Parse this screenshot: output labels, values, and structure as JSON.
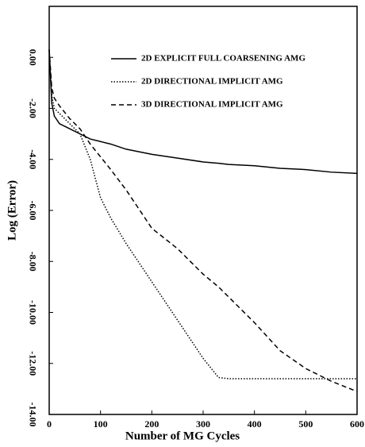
{
  "chart_data": {
    "type": "line",
    "xlabel": "Number of MG Cycles",
    "ylabel": "Log (Error)",
    "x": [
      0,
      5,
      10,
      20,
      40,
      60,
      80,
      100,
      120,
      150,
      200,
      250,
      300,
      330,
      350,
      400,
      450,
      500,
      550,
      600
    ],
    "series": [
      {
        "name": "2D EXPLICIT FULL COARSENING AMG",
        "color": "#000000",
        "style": "solid",
        "values": [
          0.3,
          -1.8,
          -2.3,
          -2.6,
          -2.8,
          -3.0,
          -3.2,
          -3.3,
          -3.4,
          -3.6,
          -3.8,
          -3.95,
          -4.1,
          -4.15,
          -4.2,
          -4.25,
          -4.35,
          -4.4,
          -4.5,
          -4.55
        ]
      },
      {
        "name": "2D DIRECTIONAL IMPLICIT AMG",
        "color": "#000000",
        "style": "dotted",
        "values": [
          0.3,
          -1.5,
          -2.0,
          -2.2,
          -2.6,
          -3.0,
          -4.0,
          -5.5,
          -6.3,
          -7.3,
          -8.8,
          -10.3,
          -11.8,
          -12.55,
          -12.6,
          -12.6,
          -12.6,
          -12.6,
          -12.6,
          -12.6
        ]
      },
      {
        "name": "3D DIRECTIONAL IMPLICIT AMG",
        "color": "#000000",
        "style": "dashed",
        "values": [
          0.3,
          -1.2,
          -1.6,
          -1.9,
          -2.4,
          -2.8,
          -3.4,
          -3.9,
          -4.4,
          -5.2,
          -6.7,
          -7.5,
          -8.5,
          -9.0,
          -9.4,
          -10.4,
          -11.5,
          -12.2,
          -12.7,
          -13.1
        ]
      }
    ],
    "xlim": [
      0,
      600
    ],
    "xticks": [
      0,
      100,
      200,
      300,
      400,
      500,
      600
    ],
    "ylim": [
      -14,
      2
    ],
    "yticks": [
      {
        "value": 0,
        "label": "0.00"
      },
      {
        "value": -2,
        "label": "-2.00"
      },
      {
        "value": -4,
        "label": "-4.00"
      },
      {
        "value": -6,
        "label": "-6.00"
      },
      {
        "value": -8,
        "label": "-8.00"
      },
      {
        "value": -10,
        "label": "-10.00"
      },
      {
        "value": -12,
        "label": "-12.00"
      },
      {
        "value": -14,
        "label": "-14.00"
      }
    ],
    "legend": "upper right",
    "grid": false
  }
}
